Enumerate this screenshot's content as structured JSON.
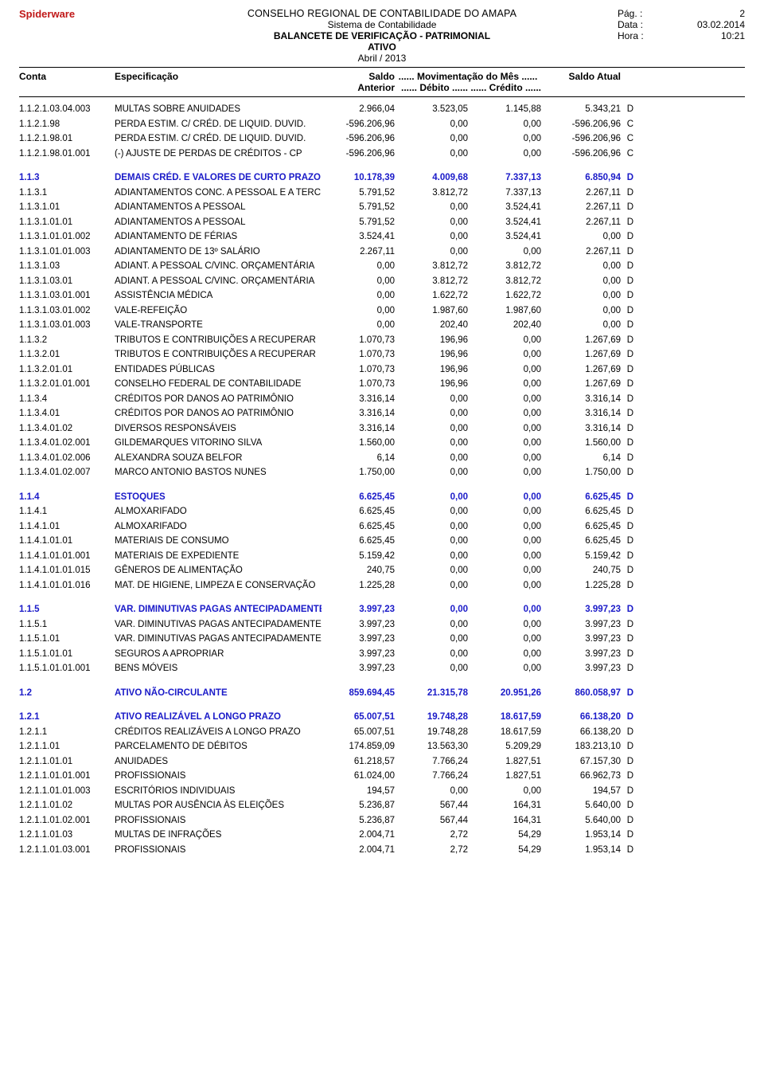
{
  "page": {
    "brand": "Spiderware",
    "org": "CONSELHO REGIONAL DE CONTABILIDADE DO AMAPA",
    "system": "Sistema de Contabilidade",
    "report": "BALANCETE DE VERIFICAÇÃO - PATRIMONIAL",
    "section": "ATIVO",
    "period": "Abril / 2013",
    "meta": {
      "pag_label": "Pág. :",
      "pag_value": "2",
      "data_label": "Data :",
      "data_value": "03.02.2014",
      "hora_label": "Hora :",
      "hora_value": "10:21"
    },
    "colors": {
      "brand": "#c01818",
      "group": "#1a1ac8",
      "rule": "#000000",
      "text": "#000000",
      "bg": "#ffffff"
    },
    "fontsizes": {
      "body": 11.5,
      "header": 12,
      "brand": 13
    }
  },
  "columns": {
    "conta": "Conta",
    "espec": "Especificação",
    "saldo": "Saldo",
    "mov": "...... Movimentação do Mês ......",
    "saldo_atual": "Saldo Atual",
    "anterior": "Anterior",
    "debito": "...... Débito ......",
    "credito": "...... Crédito ......"
  },
  "rows": [
    {
      "a": "1.1.2.1.03.04.003",
      "s": "MULTAS SOBRE ANUIDADES",
      "v1": "2.966,04",
      "v2": "3.523,05",
      "v3": "1.145,88",
      "v4": "5.343,21",
      "dc": "D"
    },
    {
      "a": "1.1.2.1.98",
      "s": "PERDA ESTIM. C/ CRÉD. DE LIQUID. DUVID.",
      "v1": "-596.206,96",
      "v2": "0,00",
      "v3": "0,00",
      "v4": "-596.206,96",
      "dc": "C"
    },
    {
      "a": "1.1.2.1.98.01",
      "s": "PERDA ESTIM. C/ CRÉD. DE LIQUID. DUVID.",
      "v1": "-596.206,96",
      "v2": "0,00",
      "v3": "0,00",
      "v4": "-596.206,96",
      "dc": "C"
    },
    {
      "a": "1.1.2.1.98.01.001",
      "s": "(-) AJUSTE DE PERDAS DE CRÉDITOS - CP",
      "v1": "-596.206,96",
      "v2": "0,00",
      "v3": "0,00",
      "v4": "-596.206,96",
      "dc": "C"
    },
    {
      "a": "1.1.3",
      "s": "DEMAIS CRÉD. E VALORES DE CURTO PRAZO",
      "v1": "10.178,39",
      "v2": "4.009,68",
      "v3": "7.337,13",
      "v4": "6.850,94",
      "dc": "D",
      "g": true
    },
    {
      "a": "1.1.3.1",
      "s": "ADIANTAMENTOS CONC. A PESSOAL E A TERC.",
      "v1": "5.791,52",
      "v2": "3.812,72",
      "v3": "7.337,13",
      "v4": "2.267,11",
      "dc": "D"
    },
    {
      "a": "1.1.3.1.01",
      "s": "ADIANTAMENTOS A PESSOAL",
      "v1": "5.791,52",
      "v2": "0,00",
      "v3": "3.524,41",
      "v4": "2.267,11",
      "dc": "D"
    },
    {
      "a": "1.1.3.1.01.01",
      "s": "ADIANTAMENTOS A PESSOAL",
      "v1": "5.791,52",
      "v2": "0,00",
      "v3": "3.524,41",
      "v4": "2.267,11",
      "dc": "D"
    },
    {
      "a": "1.1.3.1.01.01.002",
      "s": "ADIANTAMENTO DE FÉRIAS",
      "v1": "3.524,41",
      "v2": "0,00",
      "v3": "3.524,41",
      "v4": "0,00",
      "dc": "D"
    },
    {
      "a": "1.1.3.1.01.01.003",
      "s": "ADIANTAMENTO DE 13º SALÁRIO",
      "v1": "2.267,11",
      "v2": "0,00",
      "v3": "0,00",
      "v4": "2.267,11",
      "dc": "D"
    },
    {
      "a": "1.1.3.1.03",
      "s": "ADIANT. A PESSOAL C/VINC. ORÇAMENTÁRIA",
      "v1": "0,00",
      "v2": "3.812,72",
      "v3": "3.812,72",
      "v4": "0,00",
      "dc": "D"
    },
    {
      "a": "1.1.3.1.03.01",
      "s": "ADIANT. A PESSOAL C/VINC. ORÇAMENTÁRIA",
      "v1": "0,00",
      "v2": "3.812,72",
      "v3": "3.812,72",
      "v4": "0,00",
      "dc": "D"
    },
    {
      "a": "1.1.3.1.03.01.001",
      "s": "ASSISTÊNCIA MÉDICA",
      "v1": "0,00",
      "v2": "1.622,72",
      "v3": "1.622,72",
      "v4": "0,00",
      "dc": "D"
    },
    {
      "a": "1.1.3.1.03.01.002",
      "s": "VALE-REFEIÇÃO",
      "v1": "0,00",
      "v2": "1.987,60",
      "v3": "1.987,60",
      "v4": "0,00",
      "dc": "D"
    },
    {
      "a": "1.1.3.1.03.01.003",
      "s": "VALE-TRANSPORTE",
      "v1": "0,00",
      "v2": "202,40",
      "v3": "202,40",
      "v4": "0,00",
      "dc": "D"
    },
    {
      "a": "1.1.3.2",
      "s": "TRIBUTOS E CONTRIBUIÇÕES A RECUPERAR",
      "v1": "1.070,73",
      "v2": "196,96",
      "v3": "0,00",
      "v4": "1.267,69",
      "dc": "D"
    },
    {
      "a": "1.1.3.2.01",
      "s": "TRIBUTOS E CONTRIBUIÇÕES A RECUPERAR",
      "v1": "1.070,73",
      "v2": "196,96",
      "v3": "0,00",
      "v4": "1.267,69",
      "dc": "D"
    },
    {
      "a": "1.1.3.2.01.01",
      "s": "ENTIDADES PÚBLICAS",
      "v1": "1.070,73",
      "v2": "196,96",
      "v3": "0,00",
      "v4": "1.267,69",
      "dc": "D"
    },
    {
      "a": "1.1.3.2.01.01.001",
      "s": "CONSELHO FEDERAL DE CONTABILIDADE",
      "v1": "1.070,73",
      "v2": "196,96",
      "v3": "0,00",
      "v4": "1.267,69",
      "dc": "D"
    },
    {
      "a": "1.1.3.4",
      "s": "CRÉDITOS POR DANOS AO PATRIMÔNIO",
      "v1": "3.316,14",
      "v2": "0,00",
      "v3": "0,00",
      "v4": "3.316,14",
      "dc": "D"
    },
    {
      "a": "1.1.3.4.01",
      "s": "CRÉDITOS POR DANOS AO PATRIMÔNIO",
      "v1": "3.316,14",
      "v2": "0,00",
      "v3": "0,00",
      "v4": "3.316,14",
      "dc": "D"
    },
    {
      "a": "1.1.3.4.01.02",
      "s": "DIVERSOS RESPONSÁVEIS",
      "v1": "3.316,14",
      "v2": "0,00",
      "v3": "0,00",
      "v4": "3.316,14",
      "dc": "D"
    },
    {
      "a": "1.1.3.4.01.02.001",
      "s": "GILDEMARQUES VITORINO SILVA",
      "v1": "1.560,00",
      "v2": "0,00",
      "v3": "0,00",
      "v4": "1.560,00",
      "dc": "D"
    },
    {
      "a": "1.1.3.4.01.02.006",
      "s": "ALEXANDRA SOUZA BELFOR",
      "v1": "6,14",
      "v2": "0,00",
      "v3": "0,00",
      "v4": "6,14",
      "dc": "D"
    },
    {
      "a": "1.1.3.4.01.02.007",
      "s": "MARCO ANTONIO BASTOS NUNES",
      "v1": "1.750,00",
      "v2": "0,00",
      "v3": "0,00",
      "v4": "1.750,00",
      "dc": "D"
    },
    {
      "a": "1.1.4",
      "s": "ESTOQUES",
      "v1": "6.625,45",
      "v2": "0,00",
      "v3": "0,00",
      "v4": "6.625,45",
      "dc": "D",
      "g": true
    },
    {
      "a": "1.1.4.1",
      "s": "ALMOXARIFADO",
      "v1": "6.625,45",
      "v2": "0,00",
      "v3": "0,00",
      "v4": "6.625,45",
      "dc": "D"
    },
    {
      "a": "1.1.4.1.01",
      "s": "ALMOXARIFADO",
      "v1": "6.625,45",
      "v2": "0,00",
      "v3": "0,00",
      "v4": "6.625,45",
      "dc": "D"
    },
    {
      "a": "1.1.4.1.01.01",
      "s": "MATERIAIS DE CONSUMO",
      "v1": "6.625,45",
      "v2": "0,00",
      "v3": "0,00",
      "v4": "6.625,45",
      "dc": "D"
    },
    {
      "a": "1.1.4.1.01.01.001",
      "s": "MATERIAIS DE EXPEDIENTE",
      "v1": "5.159,42",
      "v2": "0,00",
      "v3": "0,00",
      "v4": "5.159,42",
      "dc": "D"
    },
    {
      "a": "1.1.4.1.01.01.015",
      "s": "GÊNEROS DE ALIMENTAÇÃO",
      "v1": "240,75",
      "v2": "0,00",
      "v3": "0,00",
      "v4": "240,75",
      "dc": "D"
    },
    {
      "a": "1.1.4.1.01.01.016",
      "s": "MAT. DE HIGIENE, LIMPEZA E CONSERVAÇÃO",
      "v1": "1.225,28",
      "v2": "0,00",
      "v3": "0,00",
      "v4": "1.225,28",
      "dc": "D"
    },
    {
      "a": "1.1.5",
      "s": "VAR. DIMINUTIVAS PAGAS ANTECIPADAMENTE",
      "v1": "3.997,23",
      "v2": "0,00",
      "v3": "0,00",
      "v4": "3.997,23",
      "dc": "D",
      "g": true
    },
    {
      "a": "1.1.5.1",
      "s": "VAR. DIMINUTIVAS PAGAS ANTECIPADAMENTE",
      "v1": "3.997,23",
      "v2": "0,00",
      "v3": "0,00",
      "v4": "3.997,23",
      "dc": "D"
    },
    {
      "a": "1.1.5.1.01",
      "s": "VAR. DIMINUTIVAS PAGAS ANTECIPADAMENTE",
      "v1": "3.997,23",
      "v2": "0,00",
      "v3": "0,00",
      "v4": "3.997,23",
      "dc": "D"
    },
    {
      "a": "1.1.5.1.01.01",
      "s": "SEGUROS A APROPRIAR",
      "v1": "3.997,23",
      "v2": "0,00",
      "v3": "0,00",
      "v4": "3.997,23",
      "dc": "D"
    },
    {
      "a": "1.1.5.1.01.01.001",
      "s": "BENS MÓVEIS",
      "v1": "3.997,23",
      "v2": "0,00",
      "v3": "0,00",
      "v4": "3.997,23",
      "dc": "D"
    },
    {
      "a": "1.2",
      "s": "ATIVO NÃO-CIRCULANTE",
      "v1": "859.694,45",
      "v2": "21.315,78",
      "v3": "20.951,26",
      "v4": "860.058,97",
      "dc": "D",
      "g": true
    },
    {
      "a": "1.2.1",
      "s": "ATIVO REALIZÁVEL A LONGO PRAZO",
      "v1": "65.007,51",
      "v2": "19.748,28",
      "v3": "18.617,59",
      "v4": "66.138,20",
      "dc": "D",
      "g": true
    },
    {
      "a": "1.2.1.1",
      "s": "CRÉDITOS REALIZÁVEIS A LONGO PRAZO",
      "v1": "65.007,51",
      "v2": "19.748,28",
      "v3": "18.617,59",
      "v4": "66.138,20",
      "dc": "D"
    },
    {
      "a": "1.2.1.1.01",
      "s": "PARCELAMENTO DE DÉBITOS",
      "v1": "174.859,09",
      "v2": "13.563,30",
      "v3": "5.209,29",
      "v4": "183.213,10",
      "dc": "D"
    },
    {
      "a": "1.2.1.1.01.01",
      "s": "ANUIDADES",
      "v1": "61.218,57",
      "v2": "7.766,24",
      "v3": "1.827,51",
      "v4": "67.157,30",
      "dc": "D"
    },
    {
      "a": "1.2.1.1.01.01.001",
      "s": "PROFISSIONAIS",
      "v1": "61.024,00",
      "v2": "7.766,24",
      "v3": "1.827,51",
      "v4": "66.962,73",
      "dc": "D"
    },
    {
      "a": "1.2.1.1.01.01.003",
      "s": "ESCRITÓRIOS INDIVIDUAIS",
      "v1": "194,57",
      "v2": "0,00",
      "v3": "0,00",
      "v4": "194,57",
      "dc": "D"
    },
    {
      "a": "1.2.1.1.01.02",
      "s": "MULTAS POR AUSÊNCIA ÀS ELEIÇÕES",
      "v1": "5.236,87",
      "v2": "567,44",
      "v3": "164,31",
      "v4": "5.640,00",
      "dc": "D"
    },
    {
      "a": "1.2.1.1.01.02.001",
      "s": "PROFISSIONAIS",
      "v1": "5.236,87",
      "v2": "567,44",
      "v3": "164,31",
      "v4": "5.640,00",
      "dc": "D"
    },
    {
      "a": "1.2.1.1.01.03",
      "s": "MULTAS DE INFRAÇÕES",
      "v1": "2.004,71",
      "v2": "2,72",
      "v3": "54,29",
      "v4": "1.953,14",
      "dc": "D"
    },
    {
      "a": "1.2.1.1.01.03.001",
      "s": "PROFISSIONAIS",
      "v1": "2.004,71",
      "v2": "2,72",
      "v3": "54,29",
      "v4": "1.953,14",
      "dc": "D"
    }
  ]
}
